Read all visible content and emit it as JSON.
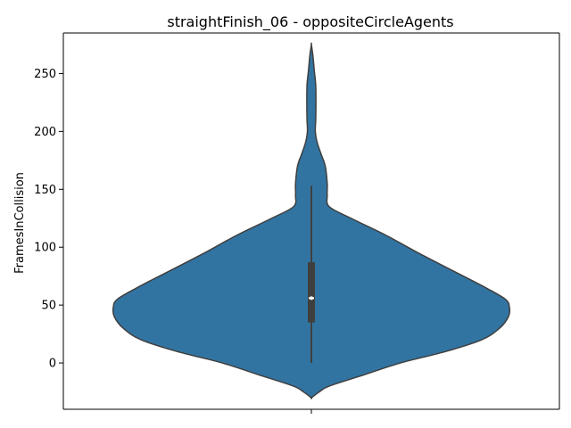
{
  "chart_data": {
    "type": "violin",
    "title": "straightFinish_06 - oppositeCircleAgents",
    "xlabel": "",
    "ylabel": "FramesInCollision",
    "ylim": [
      -40,
      285
    ],
    "yticks": [
      0,
      50,
      100,
      150,
      200,
      250
    ],
    "grid": false,
    "legend": "none",
    "color": "#3274a1",
    "edge_color": "#3f3f3f",
    "density_profile": [
      {
        "y": -30,
        "w": 0.0
      },
      {
        "y": -25,
        "w": 0.04
      },
      {
        "y": -20,
        "w": 0.09
      },
      {
        "y": -10,
        "w": 0.27
      },
      {
        "y": 0,
        "w": 0.45
      },
      {
        "y": 10,
        "w": 0.68
      },
      {
        "y": 20,
        "w": 0.86
      },
      {
        "y": 30,
        "w": 0.95
      },
      {
        "y": 40,
        "w": 0.995
      },
      {
        "y": 48,
        "w": 1.0
      },
      {
        "y": 55,
        "w": 0.98
      },
      {
        "y": 65,
        "w": 0.88
      },
      {
        "y": 80,
        "w": 0.71
      },
      {
        "y": 95,
        "w": 0.54
      },
      {
        "y": 110,
        "w": 0.38
      },
      {
        "y": 125,
        "w": 0.2
      },
      {
        "y": 135,
        "w": 0.09
      },
      {
        "y": 145,
        "w": 0.08
      },
      {
        "y": 155,
        "w": 0.08
      },
      {
        "y": 170,
        "w": 0.07
      },
      {
        "y": 180,
        "w": 0.05
      },
      {
        "y": 190,
        "w": 0.03
      },
      {
        "y": 200,
        "w": 0.02
      },
      {
        "y": 210,
        "w": 0.022
      },
      {
        "y": 225,
        "w": 0.023
      },
      {
        "y": 240,
        "w": 0.022
      },
      {
        "y": 252,
        "w": 0.015
      },
      {
        "y": 265,
        "w": 0.008
      },
      {
        "y": 275,
        "w": 0.0
      }
    ],
    "box": {
      "whisker_low": 0,
      "q1": 35,
      "median": 56,
      "q3": 87,
      "whisker_high": 153
    }
  }
}
